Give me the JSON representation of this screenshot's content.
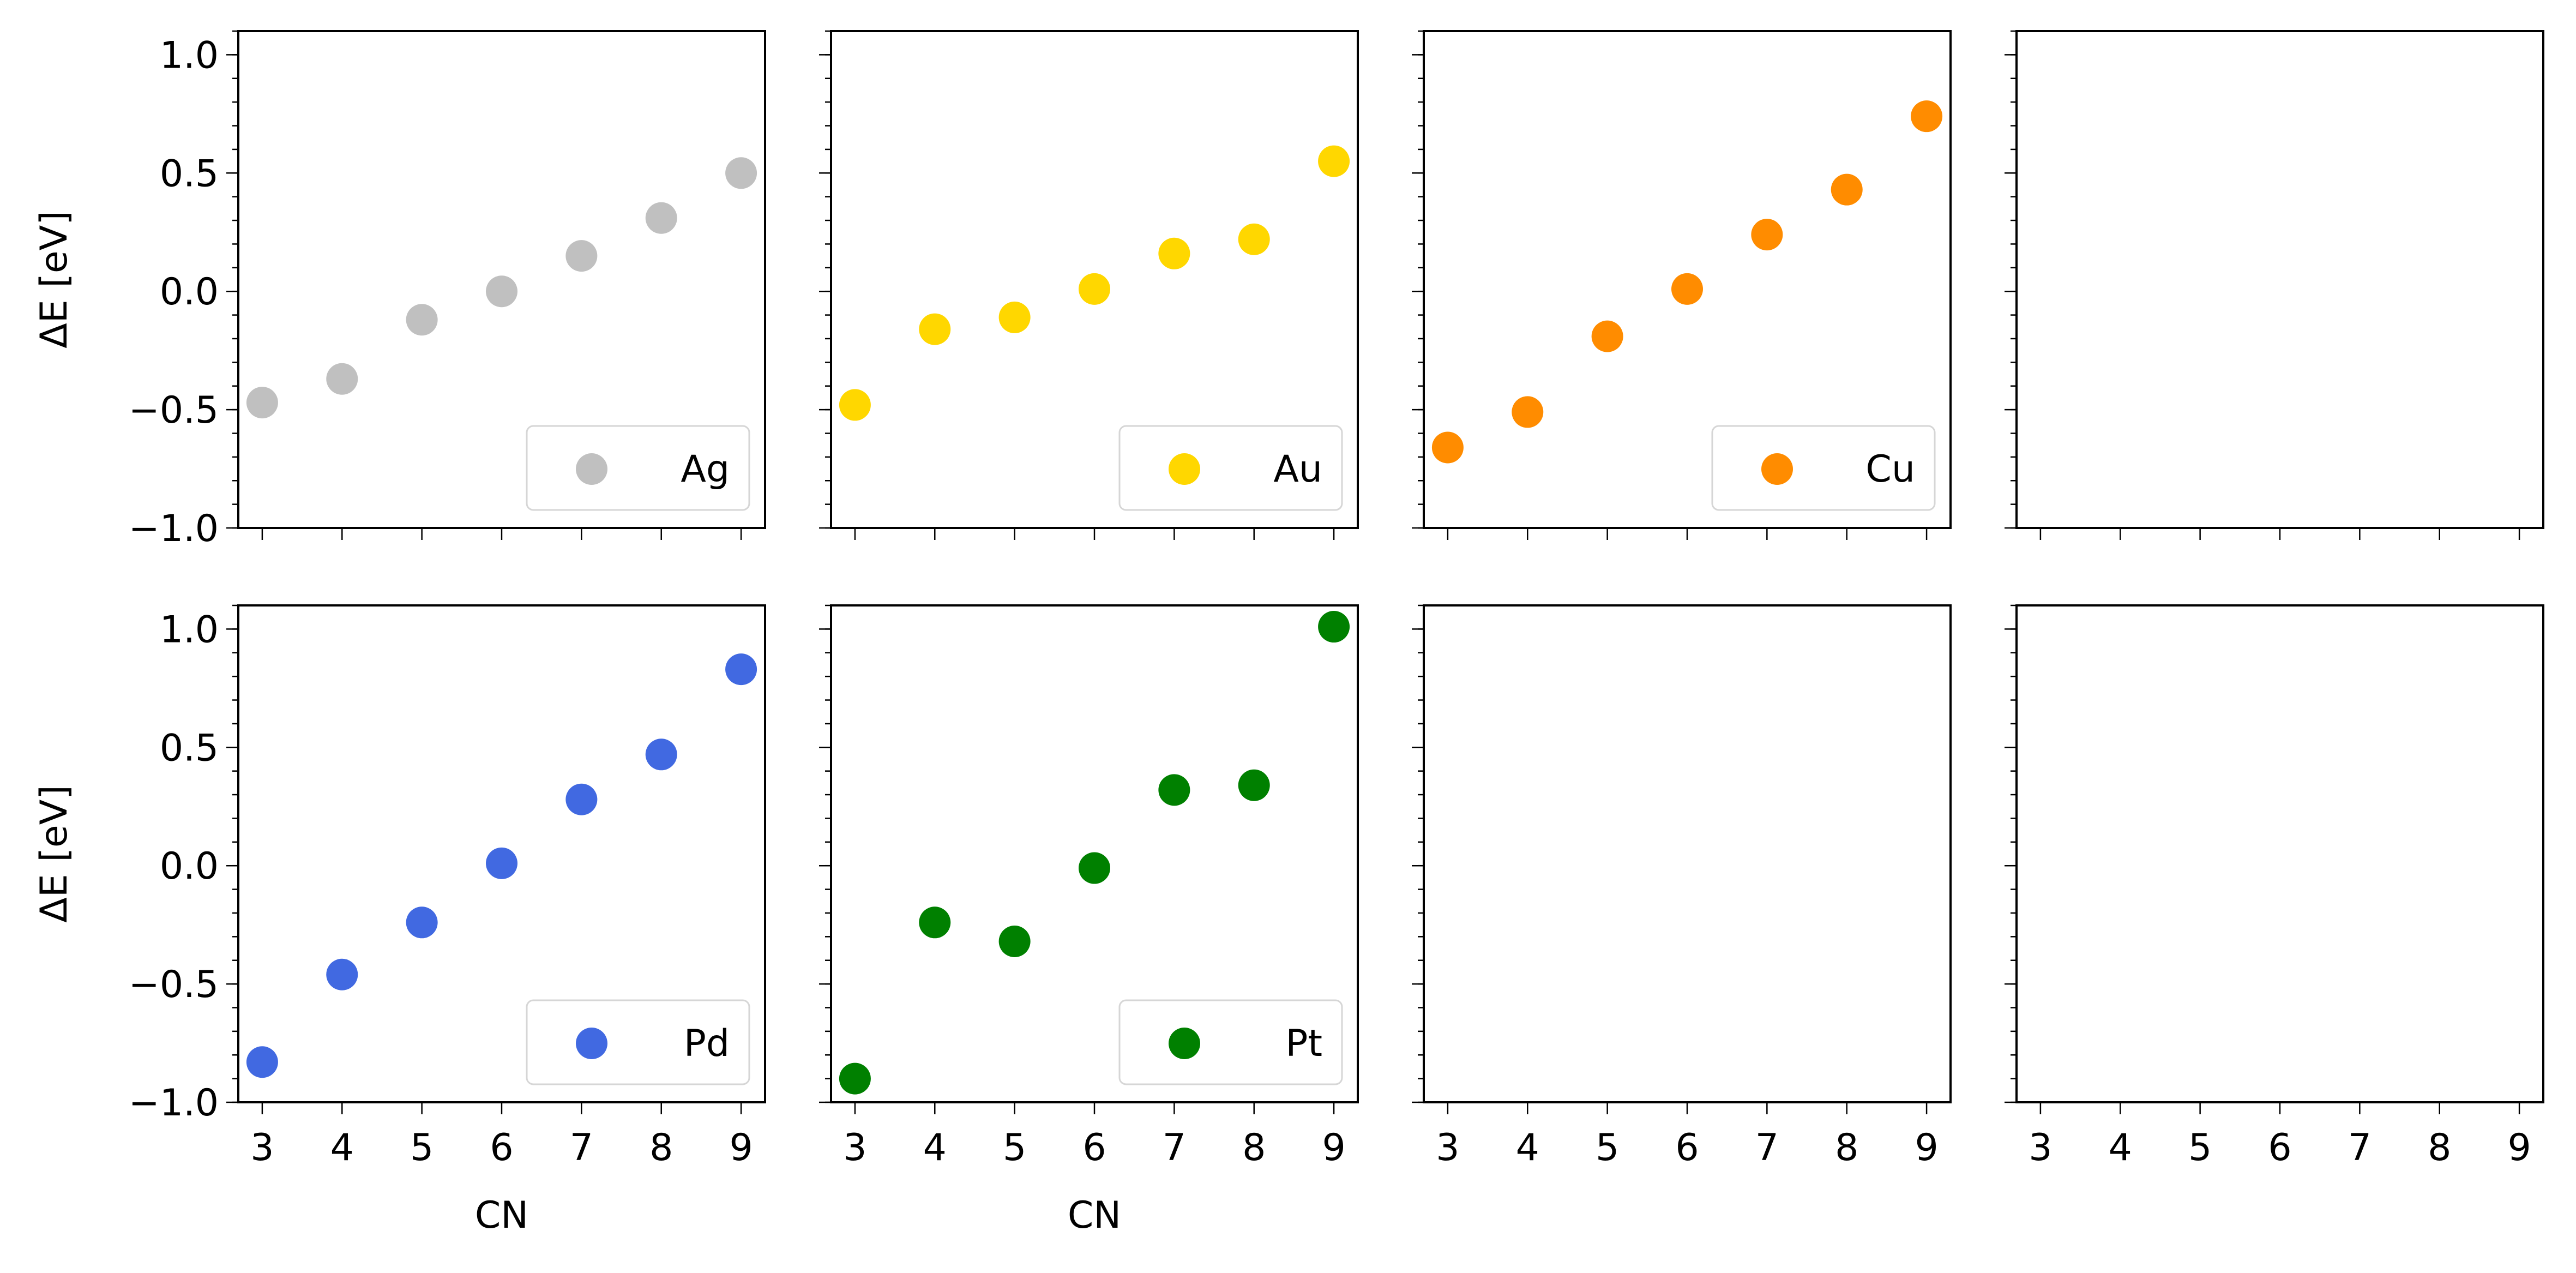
{
  "chart_data": {
    "type": "scatter",
    "layout": {
      "rows": 2,
      "cols": 4,
      "sharex": true,
      "sharey": true
    },
    "ylabel": "ΔE [eV]",
    "xlabel": "CN",
    "xlim": [
      2.7,
      9.3
    ],
    "ylim": [
      -1.0,
      1.1
    ],
    "xticks": [
      "3",
      "4",
      "5",
      "6",
      "7",
      "8",
      "9"
    ],
    "yticks": [
      "1.0",
      "0.5",
      "0.0",
      "−0.5",
      "−1.0"
    ],
    "legend_position": "lower right",
    "panels": [
      {
        "series": [
          {
            "name": "Ag",
            "color": "#c0c0c0",
            "x": [
              3,
              4,
              5,
              6,
              7,
              8,
              9
            ],
            "y": [
              -0.47,
              -0.37,
              -0.12,
              0.0,
              0.15,
              0.31,
              0.5
            ]
          }
        ]
      },
      {
        "series": [
          {
            "name": "Au",
            "color": "#ffd700",
            "x": [
              3,
              4,
              5,
              6,
              7,
              8,
              9
            ],
            "y": [
              -0.48,
              -0.16,
              -0.11,
              0.01,
              0.16,
              0.22,
              0.55
            ]
          }
        ]
      },
      {
        "series": [
          {
            "name": "Cu",
            "color": "#ff8c00",
            "x": [
              3,
              4,
              5,
              6,
              7,
              8,
              9
            ],
            "y": [
              -0.66,
              -0.51,
              -0.19,
              0.01,
              0.24,
              0.43,
              0.74
            ]
          }
        ]
      },
      {
        "series": []
      },
      {
        "series": [
          {
            "name": "Pd",
            "color": "#4169e1",
            "x": [
              3,
              4,
              5,
              6,
              7,
              8,
              9
            ],
            "y": [
              -0.83,
              -0.46,
              -0.24,
              0.01,
              0.28,
              0.47,
              0.83
            ]
          }
        ]
      },
      {
        "series": [
          {
            "name": "Pt",
            "color": "#008000",
            "x": [
              3,
              4,
              5,
              6,
              7,
              8,
              9
            ],
            "y": [
              -0.9,
              -0.24,
              -0.32,
              -0.01,
              0.32,
              0.34,
              1.01
            ]
          }
        ]
      },
      {
        "series": []
      },
      {
        "series": []
      }
    ]
  }
}
